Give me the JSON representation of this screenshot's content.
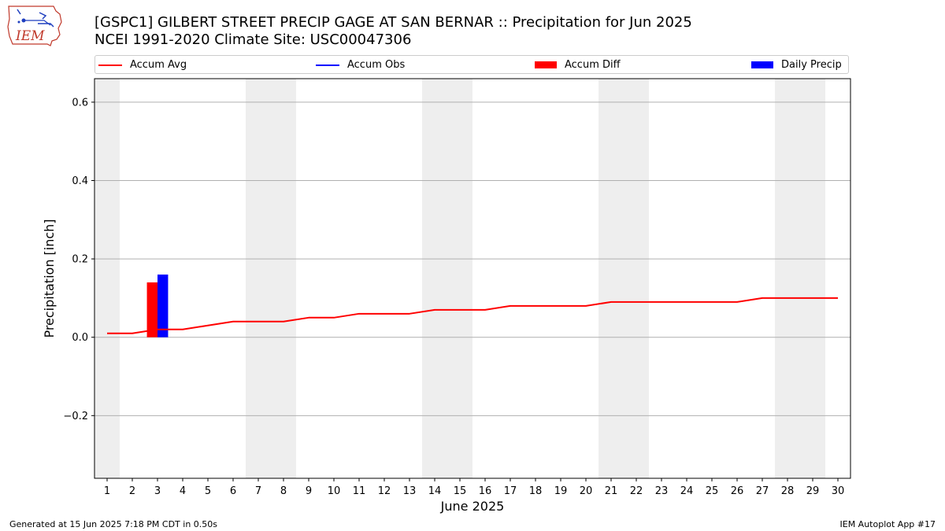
{
  "header": {
    "title_line1": "[GSPC1] GILBERT STREET PRECIP GAGE AT SAN BERNAR :: Precipitation for Jun 2025",
    "title_line2": "NCEI 1991-2020 Climate Site: USC00047306"
  },
  "logo": {
    "text": "IEM",
    "icon": "iowa-state-outline-logo"
  },
  "footer": {
    "generated": "Generated at 15 Jun 2025 7:18 PM CDT in 0.50s",
    "app": "IEM Autoplot App #17"
  },
  "legend": {
    "placement": "top",
    "items": [
      {
        "label": "Accum Avg",
        "kind": "line",
        "color": "#ff0000"
      },
      {
        "label": "Accum Obs",
        "kind": "line",
        "color": "#0000ff"
      },
      {
        "label": "Accum Diff",
        "kind": "box",
        "color": "#ff0000"
      },
      {
        "label": "Daily Precip",
        "kind": "box",
        "color": "#0000ff"
      }
    ]
  },
  "chart_data": {
    "type": "bar",
    "xlabel": "June 2025",
    "ylabel": "Precipitation [inch]",
    "xlim": [
      0.5,
      30.5
    ],
    "ylim": [
      -0.36,
      0.66
    ],
    "yticks": [
      -0.2,
      0.0,
      0.2,
      0.4,
      0.6
    ],
    "ytick_labels": [
      "−0.2",
      "0.0",
      "0.2",
      "0.4",
      "0.6"
    ],
    "days": [
      1,
      2,
      3,
      4,
      5,
      6,
      7,
      8,
      9,
      10,
      11,
      12,
      13,
      14,
      15,
      16,
      17,
      18,
      19,
      20,
      21,
      22,
      23,
      24,
      25,
      26,
      27,
      28,
      29,
      30
    ],
    "grid": true,
    "weekend_shading_days": [
      1,
      7,
      8,
      14,
      15,
      21,
      22,
      28,
      29
    ],
    "shade_color": "#eeeeee",
    "series": [
      {
        "name": "Accum Avg",
        "kind": "line",
        "color": "#ff0000",
        "values": [
          0.01,
          0.01,
          0.02,
          0.02,
          0.03,
          0.04,
          0.04,
          0.04,
          0.05,
          0.05,
          0.06,
          0.06,
          0.06,
          0.07,
          0.07,
          0.07,
          0.08,
          0.08,
          0.08,
          0.08,
          0.09,
          0.09,
          0.09,
          0.09,
          0.09,
          0.09,
          0.1,
          0.1,
          0.1,
          0.1
        ]
      },
      {
        "name": "Accum Diff",
        "kind": "bar",
        "color": "#ff0000",
        "points": [
          {
            "day": 3,
            "value": 0.14
          }
        ]
      },
      {
        "name": "Daily Precip",
        "kind": "bar",
        "color": "#0000ff",
        "points": [
          {
            "day": 3,
            "value": 0.16
          }
        ]
      }
    ]
  }
}
